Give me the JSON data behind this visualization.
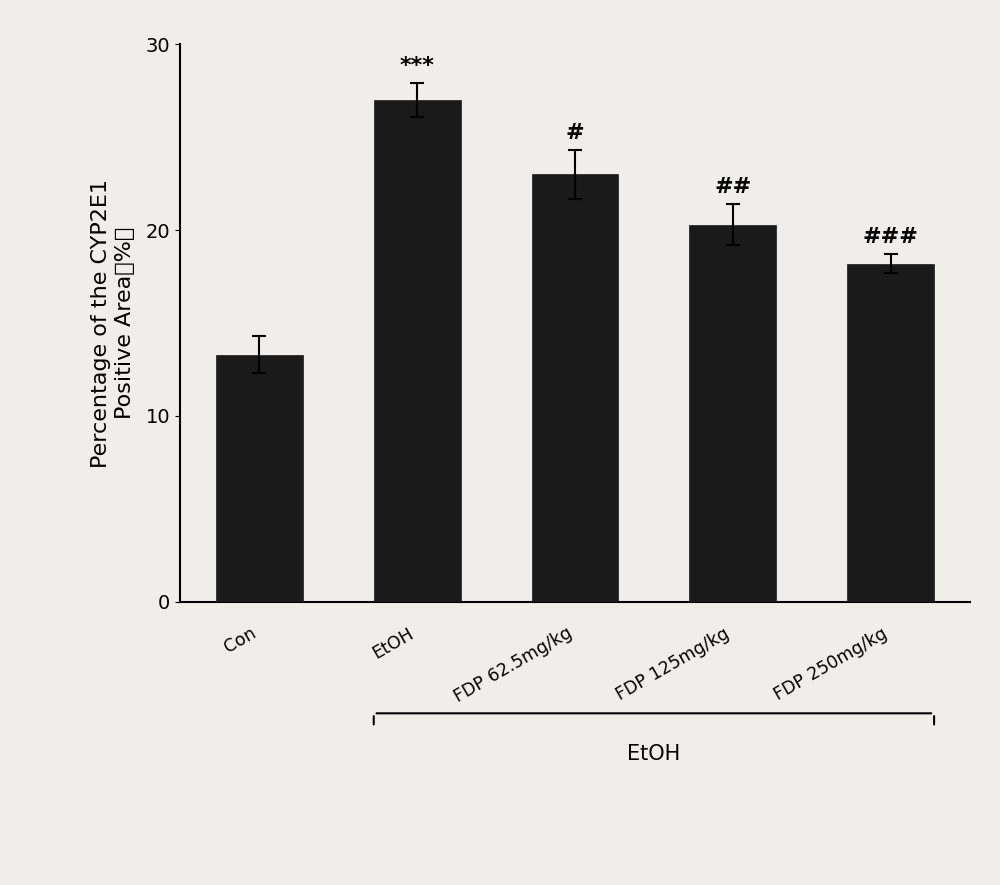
{
  "categories": [
    "Con",
    "EtOH",
    "FDP 62.5mg/kg",
    "FDP 125mg/kg",
    "FDP 250mg/kg"
  ],
  "values": [
    13.3,
    27.0,
    23.0,
    20.3,
    18.2
  ],
  "errors": [
    1.0,
    0.9,
    1.3,
    1.1,
    0.5
  ],
  "bar_color": "#1a1a1a",
  "bar_width": 0.55,
  "ylim": [
    0,
    30
  ],
  "yticks": [
    0,
    10,
    20,
    30
  ],
  "ylabel": "Percentage of the CYP2E1\nPositive Area（%）",
  "annotations": [
    "",
    "***",
    "#",
    "##",
    "###"
  ],
  "etoh_bracket_label": "EtOH",
  "background_color": "#f0eeea",
  "ylabel_fontsize": 16,
  "tick_fontsize": 14,
  "annot_fontsize": 16,
  "bar_edge_color": "#1a1a1a"
}
